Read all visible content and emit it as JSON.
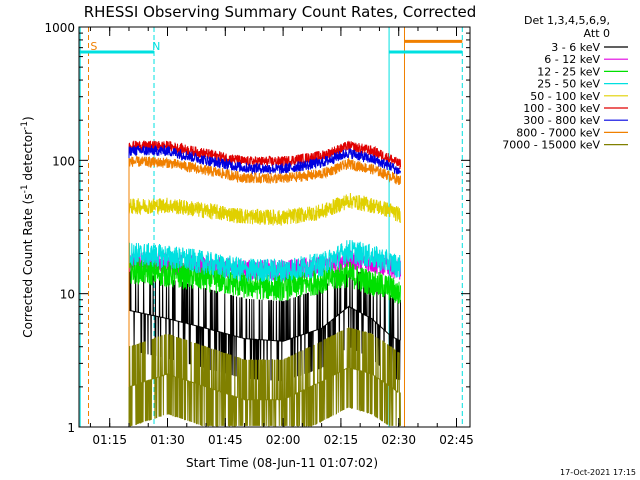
{
  "chart_data": {
    "type": "line",
    "title": "RHESSI Observing Summary Count Rates, Corrected",
    "ylabel": "Corrected Count Rate (s⁻¹ detector⁻¹)",
    "xlabel": "Start Time (08-Jun-11 01:07:02)",
    "y_scale": "log",
    "ylim": [
      1,
      1000
    ],
    "y_ticks": [
      1,
      10,
      100,
      1000
    ],
    "y_tick_labels": [
      "1",
      "10",
      "100",
      "1000"
    ],
    "xlim": [
      "01:07:02",
      "02:48:30"
    ],
    "x_ticks": [
      "01:15",
      "01:30",
      "01:45",
      "02:00",
      "02:15",
      "02:30",
      "02:45"
    ],
    "grid": false,
    "legend_position": "right",
    "legend_header": [
      "Det 1,3,4,5,6,9,",
      "Att 0"
    ],
    "data_window": [
      "01:20:00",
      "02:30:30"
    ],
    "series": [
      {
        "name": "3 - 6 keV",
        "color": "#000000",
        "x": [
          "01:20",
          "01:30",
          "01:40",
          "01:50",
          "02:00",
          "02:10",
          "02:17",
          "02:23",
          "02:28",
          "02:30"
        ],
        "values": [
          7.5,
          6.5,
          5.5,
          4.6,
          4.4,
          5.5,
          8.0,
          6.5,
          4.8,
          4.5
        ]
      },
      {
        "name": "6 - 12 keV",
        "color": "#e000e0",
        "x": [
          "01:20",
          "01:30",
          "01:40",
          "01:50",
          "02:00",
          "02:10",
          "02:17",
          "02:23",
          "02:28",
          "02:30"
        ],
        "values": [
          17,
          17,
          16,
          15,
          15,
          16,
          18,
          17,
          16,
          15
        ]
      },
      {
        "name": "12 - 25 keV",
        "color": "#00e000",
        "x": [
          "01:20",
          "01:30",
          "01:40",
          "01:50",
          "02:00",
          "02:10",
          "02:17",
          "02:23",
          "02:28",
          "02:30"
        ],
        "values": [
          15,
          14,
          13,
          11.5,
          11,
          12.5,
          14,
          12,
          11,
          10
        ]
      },
      {
        "name": "25 - 50 keV",
        "color": "#00e0e0",
        "x": [
          "01:20",
          "01:30",
          "01:40",
          "01:50",
          "02:00",
          "02:10",
          "02:17",
          "02:23",
          "02:28",
          "02:30"
        ],
        "values": [
          20,
          19,
          17,
          15,
          15,
          16.5,
          21,
          19,
          17,
          16
        ]
      },
      {
        "name": "50 - 100 keV",
        "color": "#e0d000",
        "x": [
          "01:20",
          "01:30",
          "01:40",
          "01:50",
          "02:00",
          "02:10",
          "02:17",
          "02:23",
          "02:28",
          "02:30"
        ],
        "values": [
          45,
          46,
          42,
          38,
          37,
          41,
          50,
          46,
          42,
          39
        ]
      },
      {
        "name": "100 - 300 keV",
        "color": "#e00000",
        "x": [
          "01:20",
          "01:30",
          "01:40",
          "01:50",
          "02:00",
          "02:10",
          "02:17",
          "02:23",
          "02:28",
          "02:30"
        ],
        "values": [
          128,
          128,
          112,
          98,
          98,
          108,
          128,
          118,
          102,
          94
        ]
      },
      {
        "name": "300 - 800 keV",
        "color": "#0000e0",
        "x": [
          "01:20",
          "01:30",
          "01:40",
          "01:50",
          "02:00",
          "02:10",
          "02:17",
          "02:23",
          "02:28",
          "02:30"
        ],
        "values": [
          118,
          118,
          100,
          88,
          86,
          96,
          114,
          102,
          90,
          83
        ]
      },
      {
        "name": "800 - 7000 keV",
        "color": "#f08000",
        "x": [
          "01:20",
          "01:30",
          "01:40",
          "01:50",
          "02:00",
          "02:10",
          "02:17",
          "02:23",
          "02:28",
          "02:30"
        ],
        "values": [
          98,
          96,
          84,
          74,
          73,
          79,
          94,
          86,
          76,
          71
        ]
      },
      {
        "name": "7000 - 15000 keV",
        "color": "#808000",
        "x": [
          "01:20",
          "01:30",
          "01:40",
          "01:50",
          "02:00",
          "02:10",
          "02:17",
          "02:23",
          "02:28",
          "02:30"
        ],
        "values": [
          2.0,
          2.5,
          2.0,
          1.6,
          1.6,
          2.2,
          2.8,
          2.5,
          2.0,
          1.8
        ]
      }
    ],
    "annotations": [
      {
        "text": "S",
        "color": "#f08000",
        "x": "01:10:00"
      },
      {
        "text": "N",
        "color": "#00e0e0",
        "x": "01:26:00"
      }
    ],
    "vertical_lines": [
      {
        "x": "01:07:20",
        "color": "#00e0e0",
        "style": "solid"
      },
      {
        "x": "01:09:30",
        "color": "#f08000",
        "style": "dashed"
      },
      {
        "x": "01:26:30",
        "color": "#00e0e0",
        "style": "dashed"
      },
      {
        "x": "02:27:30",
        "color": "#00e0e0",
        "style": "solid"
      },
      {
        "x": "02:31:30",
        "color": "#f08000",
        "style": "solid"
      },
      {
        "x": "02:46:30",
        "color": "#00e0e0",
        "style": "dashed"
      }
    ],
    "top_bars": [
      {
        "x0": "01:07:02",
        "x1": "01:26:30",
        "color": "#00e0e0",
        "value": 650
      },
      {
        "x0": "02:27:30",
        "x1": "02:46:30",
        "color": "#00e0e0",
        "value": 650
      },
      {
        "x0": "02:31:30",
        "x1": "02:46:30",
        "color": "#f08000",
        "value": 780
      }
    ]
  },
  "footer_date": "17-Oct-2021 17:15"
}
